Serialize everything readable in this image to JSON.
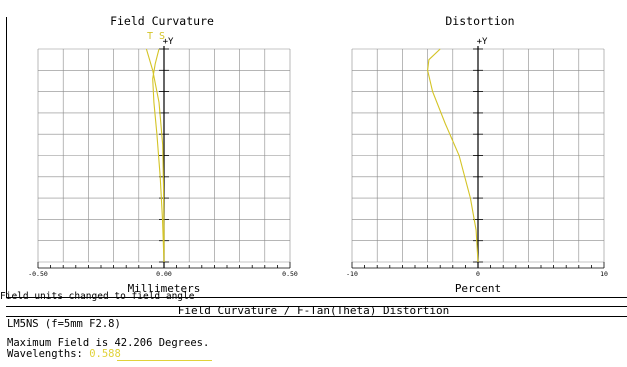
{
  "window": {
    "title": "Field Curvature / F-Tan(Theta) Distortion",
    "note": "Field units changed to field angle"
  },
  "lens": {
    "name": "LM5NS (f=5mm F2.8)",
    "max_field_text": "Maximum Field is 42.206 Degrees.",
    "wavelengths_label": "Wavelengths:",
    "wavelength_value": "0.588"
  },
  "colors": {
    "curve": "#d4c426",
    "grid": "#8a8a8a",
    "axis": "#000000",
    "tangential_label": "#d4c426"
  },
  "chart_data": [
    {
      "type": "line",
      "title": "Field Curvature",
      "xlabel": "Millimeters",
      "y_axis_label": "+Y",
      "xlim": [
        -0.5,
        0.5
      ],
      "ylim": [
        0,
        1
      ],
      "x_tick_labels": [
        "-0.50",
        "0.00",
        "0.50"
      ],
      "curve_labels": [
        "T",
        "S"
      ],
      "grid": true,
      "series": [
        {
          "name": "T",
          "points": [
            [
              -0.07,
              1.0
            ],
            [
              -0.045,
              0.9
            ],
            [
              -0.02,
              0.75
            ],
            [
              -0.005,
              0.55
            ],
            [
              -0.002,
              0.35
            ],
            [
              0.0,
              0.15
            ],
            [
              0.0,
              0.0
            ]
          ]
        },
        {
          "name": "S",
          "points": [
            [
              -0.02,
              1.0
            ],
            [
              -0.035,
              0.93
            ],
            [
              -0.045,
              0.86
            ],
            [
              -0.04,
              0.75
            ],
            [
              -0.028,
              0.6
            ],
            [
              -0.015,
              0.4
            ],
            [
              -0.006,
              0.2
            ],
            [
              0.0,
              0.0
            ]
          ]
        }
      ]
    },
    {
      "type": "line",
      "title": "Distortion",
      "xlabel": "Percent",
      "y_axis_label": "+Y",
      "xlim": [
        -10,
        10
      ],
      "ylim": [
        0,
        1
      ],
      "x_tick_labels": [
        "-10",
        "0",
        "10"
      ],
      "grid": true,
      "series": [
        {
          "points": [
            [
              -3.0,
              1.0
            ],
            [
              -3.9,
              0.95
            ],
            [
              -4.0,
              0.9
            ],
            [
              -3.6,
              0.8
            ],
            [
              -2.6,
              0.65
            ],
            [
              -1.5,
              0.5
            ],
            [
              -0.6,
              0.3
            ],
            [
              -0.15,
              0.15
            ],
            [
              0.0,
              0.0
            ]
          ]
        }
      ]
    }
  ]
}
